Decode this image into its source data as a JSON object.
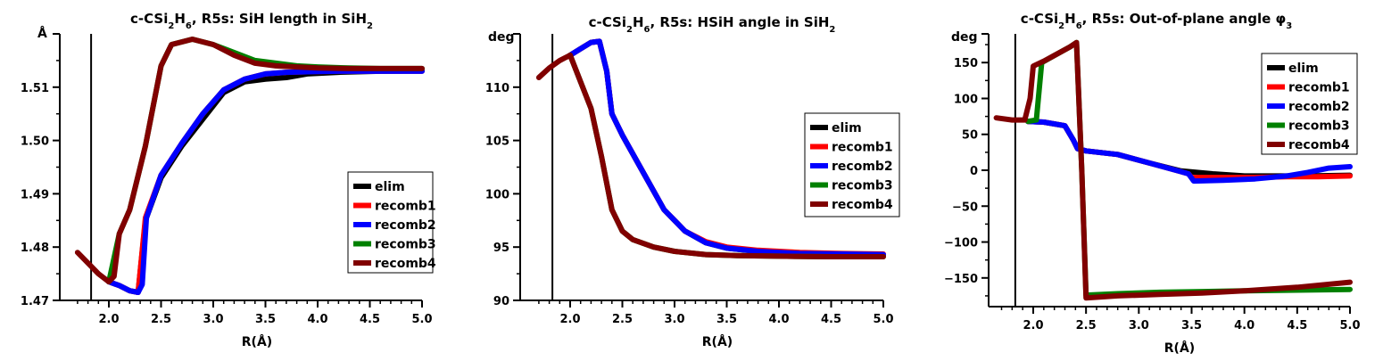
{
  "chart_data": [
    {
      "type": "line",
      "title": "c-CSi2H6, R5s: SiH length in SiH2",
      "title_parts": {
        "a": "c-CSi",
        "b": "2",
        "c": "H",
        "d": "6",
        "e": ", R5s: SiH length in SiH",
        "f": "2"
      },
      "xlabel": "R(Å)",
      "ylabel": "Å",
      "xlim": [
        1.65,
        5.0
      ],
      "ylim": [
        1.47,
        1.52
      ],
      "xticks": [
        "2.0",
        "2.5",
        "3.0",
        "3.5",
        "4.0",
        "4.5",
        "5.0"
      ],
      "yticks": [
        "1.47",
        "1.48",
        "1.49",
        "1.50",
        "1.51"
      ],
      "vline_x": 1.83,
      "legend": [
        "elim",
        "recomb1",
        "recomb2",
        "recomb3",
        "recomb4"
      ],
      "legend_position": "lower-right",
      "series": [
        {
          "name": "elim",
          "color": "#000000",
          "x": [
            2.0,
            2.1,
            2.2,
            2.28,
            2.35,
            2.5,
            2.7,
            2.9,
            3.1,
            3.3,
            3.5,
            3.7,
            3.9,
            4.2,
            4.6,
            5.0
          ],
          "y": [
            1.4735,
            1.4728,
            1.4718,
            1.4715,
            1.485,
            1.493,
            1.499,
            1.504,
            1.509,
            1.511,
            1.5115,
            1.5118,
            1.5125,
            1.5128,
            1.513,
            1.5131
          ]
        },
        {
          "name": "recomb1",
          "color": "#ff0000",
          "x": [
            2.0,
            2.1,
            2.2,
            2.28,
            2.35,
            2.5,
            2.7,
            2.9,
            3.1,
            3.3,
            3.5,
            3.7,
            3.9,
            4.2,
            4.6,
            5.0
          ],
          "y": [
            1.4735,
            1.4728,
            1.4718,
            1.4715,
            1.4855,
            1.4935,
            1.4995,
            1.505,
            1.5095,
            1.5115,
            1.5125,
            1.5128,
            1.5129,
            1.513,
            1.513,
            1.513
          ]
        },
        {
          "name": "recomb2",
          "color": "#0000ff",
          "x": [
            2.0,
            2.1,
            2.2,
            2.28,
            2.32,
            2.36,
            2.5,
            2.7,
            2.9,
            3.1,
            3.3,
            3.5,
            3.7,
            3.9,
            4.2,
            4.6,
            5.0
          ],
          "y": [
            1.4735,
            1.4728,
            1.4718,
            1.4715,
            1.473,
            1.4855,
            1.4935,
            1.4995,
            1.505,
            1.5095,
            1.5115,
            1.5125,
            1.5128,
            1.5129,
            1.513,
            1.513,
            1.513
          ]
        },
        {
          "name": "recomb3",
          "color": "#008000",
          "x": [
            2.0,
            2.1,
            2.2,
            2.35,
            2.5,
            2.6,
            2.8,
            3.0,
            3.2,
            3.4,
            3.6,
            3.8,
            4.0,
            4.3,
            4.6,
            5.0
          ],
          "y": [
            1.4735,
            1.4825,
            1.487,
            1.499,
            1.514,
            1.518,
            1.519,
            1.518,
            1.5165,
            1.515,
            1.5145,
            1.514,
            1.5138,
            1.5136,
            1.5135,
            1.5135
          ]
        },
        {
          "name": "recomb4",
          "color": "#800000",
          "x": [
            1.7,
            1.8,
            1.9,
            2.0,
            2.05,
            2.1,
            2.2,
            2.35,
            2.5,
            2.6,
            2.8,
            3.0,
            3.2,
            3.4,
            3.6,
            3.8,
            4.0,
            4.3,
            4.6,
            5.0
          ],
          "y": [
            1.479,
            1.477,
            1.475,
            1.4735,
            1.4745,
            1.4825,
            1.487,
            1.499,
            1.514,
            1.518,
            1.519,
            1.518,
            1.516,
            1.5145,
            1.514,
            1.5138,
            1.5136,
            1.5135,
            1.5135,
            1.5135
          ]
        }
      ]
    },
    {
      "type": "line",
      "title": "c-CSi2H6, R5s: HSiH angle in SiH2",
      "title_parts": {
        "a": "c-CSi",
        "b": "2",
        "c": "H",
        "d": "6",
        "e": ", R5s: HSiH angle in SiH",
        "f": "2"
      },
      "xlabel": "R(Å)",
      "ylabel": "deg",
      "xlim": [
        1.65,
        5.0
      ],
      "ylim": [
        90,
        115
      ],
      "xticks": [
        "2.0",
        "2.5",
        "3.0",
        "3.5",
        "4.0",
        "4.5",
        "5.0"
      ],
      "yticks": [
        "90",
        "95",
        "100",
        "105",
        "110"
      ],
      "vline_x": 1.83,
      "legend": [
        "elim",
        "recomb1",
        "recomb2",
        "recomb3",
        "recomb4"
      ],
      "legend_position": "center-right",
      "series": [
        {
          "name": "elim",
          "color": "#000000",
          "x": [
            2.0,
            2.1,
            2.2,
            2.28,
            2.35,
            2.4,
            2.5,
            2.7,
            2.9,
            3.1,
            3.3,
            3.5,
            3.8,
            4.2,
            4.6,
            5.0
          ],
          "y": [
            113.0,
            113.6,
            114.2,
            114.3,
            111.5,
            107.5,
            105.5,
            102.0,
            98.5,
            96.5,
            95.4,
            94.9,
            94.6,
            94.4,
            94.35,
            94.3
          ]
        },
        {
          "name": "recomb1",
          "color": "#ff0000",
          "x": [
            2.0,
            2.1,
            2.2,
            2.28,
            2.35,
            2.4,
            2.5,
            2.7,
            2.9,
            3.1,
            3.3,
            3.5,
            3.8,
            4.2,
            4.6,
            5.0
          ],
          "y": [
            113.0,
            113.6,
            114.2,
            114.3,
            111.5,
            107.5,
            105.5,
            102.0,
            98.5,
            96.5,
            95.5,
            95.0,
            94.7,
            94.5,
            94.4,
            94.35
          ]
        },
        {
          "name": "recomb2",
          "color": "#0000ff",
          "x": [
            2.0,
            2.1,
            2.2,
            2.28,
            2.35,
            2.4,
            2.5,
            2.7,
            2.9,
            3.1,
            3.3,
            3.5,
            3.8,
            4.2,
            4.6,
            5.0
          ],
          "y": [
            113.0,
            113.6,
            114.2,
            114.3,
            111.5,
            107.5,
            105.5,
            102.0,
            98.5,
            96.5,
            95.4,
            94.9,
            94.6,
            94.4,
            94.35,
            94.3
          ]
        },
        {
          "name": "recomb3",
          "color": "#008000",
          "x": [
            2.0,
            2.1,
            2.2,
            2.3,
            2.4,
            2.5,
            2.6,
            2.8,
            3.0,
            3.3,
            3.6,
            4.0,
            4.5,
            5.0
          ],
          "y": [
            113.0,
            110.5,
            108.0,
            103.5,
            98.5,
            96.5,
            95.7,
            95.0,
            94.6,
            94.3,
            94.2,
            94.15,
            94.1,
            94.1
          ]
        },
        {
          "name": "recomb4",
          "color": "#800000",
          "x": [
            1.7,
            1.8,
            1.9,
            2.0,
            2.1,
            2.2,
            2.3,
            2.4,
            2.5,
            2.6,
            2.8,
            3.0,
            3.3,
            3.6,
            4.0,
            4.5,
            5.0
          ],
          "y": [
            110.9,
            111.8,
            112.5,
            113.0,
            110.5,
            108.0,
            103.5,
            98.5,
            96.5,
            95.7,
            95.0,
            94.6,
            94.3,
            94.2,
            94.15,
            94.1,
            94.1
          ]
        }
      ]
    },
    {
      "type": "line",
      "title": "c-CSi2H6, R5s: Out-of-plane angle φ3",
      "title_parts": {
        "a": "c-CSi",
        "b": "2",
        "c": "H",
        "d": "6",
        "e": ", R5s: Out-of-plane angle φ",
        "f": "3"
      },
      "xlabel": "R(Å)",
      "ylabel": "deg",
      "xlim": [
        1.65,
        5.0
      ],
      "ylim": [
        -190,
        190
      ],
      "xticks": [
        "2.0",
        "2.5",
        "3.0",
        "3.5",
        "4.0",
        "4.5",
        "5.0"
      ],
      "yticks": [
        "−150",
        "−100",
        "−50",
        "0",
        "50",
        "100",
        "150"
      ],
      "ytick_values": [
        -150,
        -100,
        -50,
        0,
        50,
        100,
        150
      ],
      "vline_x": 1.83,
      "legend": [
        "elim",
        "recomb1",
        "recomb2",
        "recomb3",
        "recomb4"
      ],
      "legend_position": "top-right",
      "series": [
        {
          "name": "elim",
          "color": "#000000",
          "x": [
            1.95,
            2.1,
            2.3,
            2.38,
            2.42,
            2.5,
            2.8,
            3.1,
            3.4,
            3.7,
            4.0,
            4.3,
            4.6,
            5.0
          ],
          "y": [
            68,
            67,
            62,
            42,
            30,
            27,
            22,
            10,
            -1,
            -5,
            -8,
            -8,
            -8,
            -7
          ]
        },
        {
          "name": "recomb1",
          "color": "#ff0000",
          "x": [
            1.95,
            2.1,
            2.3,
            2.38,
            2.42,
            2.5,
            2.8,
            3.1,
            3.4,
            3.47,
            3.5,
            3.8,
            4.1,
            4.4,
            4.7,
            5.0
          ],
          "y": [
            68,
            67,
            62,
            42,
            30,
            27,
            22,
            10,
            -2,
            -5,
            -10,
            -10,
            -10,
            -9,
            -9,
            -8
          ]
        },
        {
          "name": "recomb2",
          "color": "#0000ff",
          "x": [
            1.95,
            2.1,
            2.3,
            2.38,
            2.42,
            2.5,
            2.8,
            3.1,
            3.4,
            3.47,
            3.52,
            3.8,
            4.1,
            4.4,
            4.6,
            4.8,
            5.0
          ],
          "y": [
            68,
            67,
            62,
            42,
            30,
            27,
            22,
            10,
            -2,
            -5,
            -15,
            -14,
            -12,
            -8,
            -3,
            3,
            5
          ]
        },
        {
          "name": "recomb3",
          "color": "#008000",
          "x": [
            1.95,
            2.03,
            2.08,
            2.2,
            2.35,
            2.41,
            2.46,
            2.5,
            2.8,
            3.2,
            3.6,
            4.0,
            4.5,
            5.0
          ],
          "y": [
            68,
            70,
            150,
            160,
            172,
            178,
            0,
            -174,
            -172,
            -170,
            -169,
            -168,
            -167,
            -166
          ]
        },
        {
          "name": "recomb4",
          "color": "#800000",
          "x": [
            1.65,
            1.8,
            1.92,
            1.97,
            2.0,
            2.1,
            2.2,
            2.35,
            2.41,
            2.46,
            2.5,
            2.8,
            3.2,
            3.6,
            4.0,
            4.5,
            5.0
          ],
          "y": [
            73,
            70,
            70,
            100,
            145,
            152,
            160,
            172,
            178,
            0,
            -178,
            -175,
            -173,
            -171,
            -168,
            -163,
            -156
          ]
        }
      ]
    }
  ]
}
